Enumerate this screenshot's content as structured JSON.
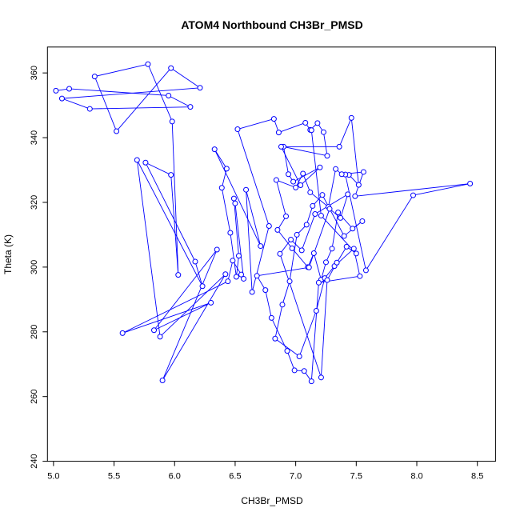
{
  "chart_data": {
    "type": "line",
    "title": "ATOM4 Northbound CH3Br_PMSD",
    "xlabel": "CH3Br_PMSD",
    "ylabel": "Theta (K)",
    "xlim": [
      4.95,
      8.65
    ],
    "ylim": [
      240,
      368
    ],
    "xticks": [
      "5.0",
      "5.5",
      "6.0",
      "6.5",
      "7.0",
      "7.5",
      "8.0",
      "8.5"
    ],
    "yticks": [
      "240",
      "260",
      "280",
      "300",
      "320",
      "340",
      "360"
    ],
    "grid": false,
    "legend": "none",
    "series_color": "#0000ff",
    "markers": "open-circle",
    "series": [
      {
        "x": [
          5.02,
          5.13,
          5.95,
          6.13,
          5.3,
          5.07,
          6.21,
          5.97,
          5.52,
          5.34,
          5.78,
          5.98,
          6.03,
          5.97,
          5.76,
          6.17,
          6.23,
          5.69,
          5.88,
          6.42,
          5.9,
          6.35,
          5.83,
          6.3,
          5.57,
          6.44,
          6.48,
          6.55,
          6.57,
          6.5,
          6.49,
          6.53,
          6.51,
          6.46,
          6.39,
          6.43,
          6.33,
          6.71,
          6.59,
          6.64,
          6.78,
          6.52,
          6.82,
          6.86,
          7.08,
          7.12,
          7.18,
          7.23,
          7.26,
          6.9,
          6.94,
          6.98,
          7.2,
          7.04,
          6.88,
          7.36,
          7.46,
          7.52,
          7.44,
          7.41,
          7.58,
          7.97,
          8.44,
          7.49,
          7.56,
          7.38,
          7.33,
          7.27,
          7.12,
          7.06,
          7.0,
          6.84,
          6.92,
          6.85,
          6.97,
          7.1,
          7.15,
          7.21,
          7.25,
          7.3,
          7.35,
          7.47,
          7.55,
          7.4,
          7.22,
          7.14,
          7.09,
          7.01,
          6.95,
          6.89,
          6.83,
          7.03,
          7.17,
          7.24,
          7.32,
          7.48,
          7.53,
          7.19,
          7.13,
          7.07,
          6.99,
          6.93,
          6.8,
          6.75,
          6.68,
          7.11,
          7.28,
          7.37,
          7.43,
          7.16,
          7.05,
          6.96,
          6.87,
          7.21,
          7.26,
          7.34,
          7.42,
          7.5,
          7.21,
          7.13
        ],
        "y": [
          354.5,
          355.1,
          353.0,
          349.5,
          348.9,
          352.1,
          355.4,
          361.5,
          342.0,
          358.9,
          362.7,
          345.0,
          297.6,
          328.5,
          332.3,
          301.7,
          294.1,
          333.1,
          278.5,
          297.8,
          265.0,
          305.4,
          280.5,
          289.0,
          279.6,
          295.6,
          302.0,
          297.7,
          296.4,
          319.7,
          321.2,
          303.5,
          297.0,
          310.6,
          324.5,
          330.4,
          336.4,
          306.5,
          323.9,
          292.3,
          312.7,
          342.6,
          345.8,
          341.6,
          344.6,
          342.4,
          344.5,
          341.7,
          334.4,
          337.2,
          328.7,
          326.4,
          330.8,
          325.3,
          337.2,
          337.2,
          346.1,
          325.4,
          328.5,
          328.6,
          299.0,
          322.2,
          325.8,
          321.9,
          329.4,
          328.7,
          330.3,
          318.6,
          323.1,
          328.9,
          324.6,
          326.9,
          315.7,
          311.5,
          305.8,
          300.0,
          304.3,
          296.1,
          301.5,
          305.7,
          316.9,
          311.9,
          314.2,
          309.6,
          322.3,
          318.9,
          313.1,
          310.0,
          295.6,
          288.4,
          277.9,
          272.4,
          286.5,
          296.6,
          300.3,
          305.7,
          297.2,
          295.2,
          264.7,
          267.9,
          268.1,
          274.1,
          284.3,
          292.9,
          297.3,
          299.9,
          318.0,
          315.2,
          322.5,
          316.4,
          305.2,
          308.5,
          304.1,
          265.9,
          296.0,
          301.4,
          306.3,
          304.2,
          315.9,
          342.3
        ]
      }
    ]
  }
}
